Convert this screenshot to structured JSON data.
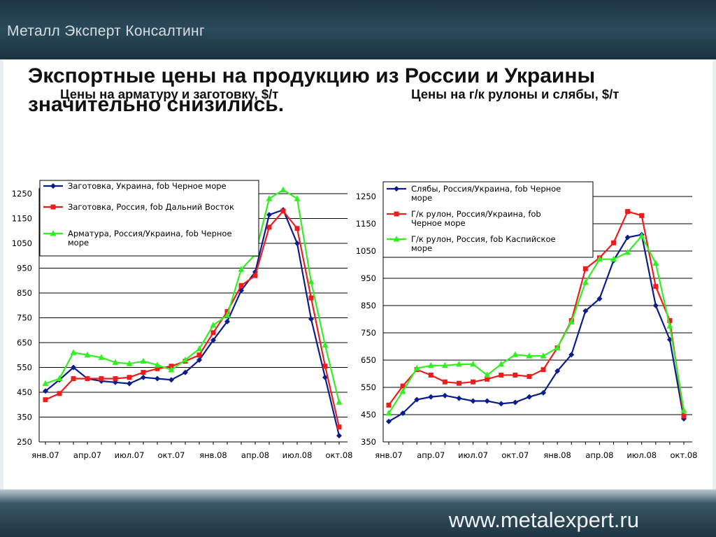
{
  "header": {
    "brand": "Металл Эксперт Консалтинг"
  },
  "slide": {
    "title": "Экспортные цены на продукцию из России и Украины значительно снизились."
  },
  "footer": {
    "site": "www.metalexpert.ru"
  },
  "colors": {
    "navy": "#0b1d8c",
    "red": "#ee1c1c",
    "green": "#33ee22"
  },
  "chart_data": [
    {
      "type": "line",
      "title": "Цены на арматуру и заготовку, $/т",
      "ylim": [
        250,
        1250
      ],
      "yticks": [
        250,
        350,
        450,
        550,
        650,
        750,
        850,
        950,
        1050,
        1150,
        1250
      ],
      "xticks": [
        "янв.07",
        "апр.07",
        "июл.07",
        "окт.07",
        "янв.08",
        "апр.08",
        "июл.08",
        "окт.08"
      ],
      "grid": true,
      "legend_position": "top-right",
      "series": [
        {
          "name": "Заготовка, Украина, fob Черное море",
          "color": "#0b1d8c",
          "marker": "diamond",
          "values": [
            455,
            500,
            550,
            505,
            495,
            490,
            485,
            510,
            505,
            500,
            530,
            580,
            660,
            735,
            860,
            935,
            1165,
            1185,
            1050,
            745,
            510,
            275
          ]
        },
        {
          "name": "Заготовка, Россия, fob Дальний Восток",
          "color": "#ee1c1c",
          "marker": "square",
          "values": [
            420,
            445,
            505,
            505,
            505,
            505,
            510,
            530,
            545,
            555,
            575,
            600,
            690,
            775,
            880,
            920,
            1115,
            1180,
            1110,
            830,
            555,
            310
          ]
        },
        {
          "name": "Арматура, Россия/Украина, fob Черное море",
          "color": "#33ee22",
          "marker": "triangle",
          "values": [
            485,
            505,
            610,
            600,
            590,
            570,
            565,
            575,
            560,
            540,
            580,
            625,
            720,
            760,
            945,
            1005,
            1230,
            1265,
            1230,
            895,
            640,
            410
          ]
        }
      ]
    },
    {
      "type": "line",
      "title": "Цены на г/к рулоны и слябы, $/т",
      "ylim": [
        350,
        1250
      ],
      "yticks": [
        350,
        450,
        550,
        650,
        750,
        850,
        950,
        1050,
        1150,
        1250
      ],
      "xticks": [
        "янв.07",
        "апр.07",
        "июл.07",
        "окт.07",
        "янв.08",
        "апр.08",
        "июл.08",
        "окт.08"
      ],
      "grid": true,
      "legend_position": "top-right",
      "series": [
        {
          "name": "Слябы, Россия/Украина, fob Черное море",
          "color": "#0b1d8c",
          "marker": "diamond",
          "values": [
            425,
            455,
            505,
            515,
            520,
            510,
            500,
            500,
            490,
            495,
            515,
            530,
            610,
            670,
            830,
            875,
            1015,
            1100,
            1110,
            850,
            725,
            435
          ]
        },
        {
          "name": "Г/к рулон, Россия/Украина, fob Черное море",
          "color": "#ee1c1c",
          "marker": "square",
          "values": [
            485,
            555,
            615,
            595,
            570,
            565,
            570,
            580,
            595,
            595,
            590,
            615,
            695,
            795,
            985,
            1025,
            1080,
            1195,
            1180,
            920,
            795,
            445
          ]
        },
        {
          "name": "Г/к рулон, Россия, fob Каспийское море",
          "color": "#33ee22",
          "marker": "triangle",
          "values": [
            455,
            535,
            620,
            630,
            630,
            635,
            635,
            595,
            635,
            670,
            665,
            665,
            695,
            790,
            935,
            1020,
            1020,
            1045,
            1105,
            1005,
            775,
            465
          ]
        }
      ]
    }
  ]
}
